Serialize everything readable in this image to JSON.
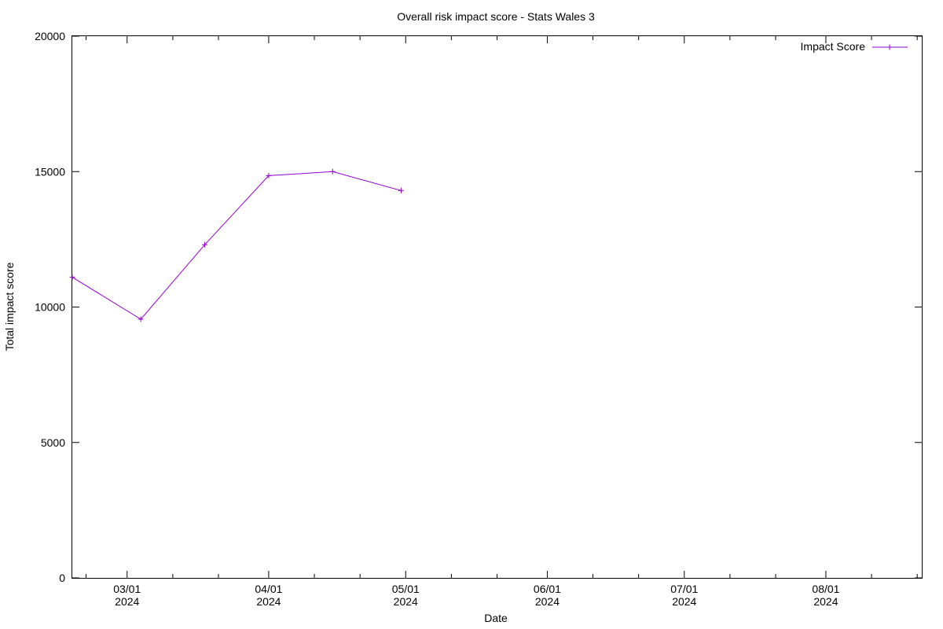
{
  "chart_data": {
    "type": "line",
    "title": "Overall risk impact score - Stats Wales 3",
    "xlabel": "Date",
    "ylabel": "Total impact score",
    "x_scale": "time",
    "xlim": [
      "2024-02-18",
      "2024-08-22"
    ],
    "ylim": [
      0,
      20000
    ],
    "y_ticks": [
      0,
      5000,
      10000,
      15000,
      20000
    ],
    "x_ticks": [
      {
        "date": "2024-03-01",
        "label_top": "03/01",
        "label_bottom": "2024"
      },
      {
        "date": "2024-04-01",
        "label_top": "04/01",
        "label_bottom": "2024"
      },
      {
        "date": "2024-05-01",
        "label_top": "05/01",
        "label_bottom": "2024"
      },
      {
        "date": "2024-06-01",
        "label_top": "06/01",
        "label_bottom": "2024"
      },
      {
        "date": "2024-07-01",
        "label_top": "07/01",
        "label_bottom": "2024"
      },
      {
        "date": "2024-08-01",
        "label_top": "08/01",
        "label_bottom": "2024"
      }
    ],
    "x_minor_ticks": [
      "2024-02-21",
      "2024-03-11",
      "2024-03-21",
      "2024-04-11",
      "2024-04-21",
      "2024-05-11",
      "2024-05-21",
      "2024-06-11",
      "2024-06-21",
      "2024-07-11",
      "2024-07-21",
      "2024-08-11",
      "2024-08-21"
    ],
    "grid": false,
    "legend_position": "top-right",
    "series": [
      {
        "name": "Impact Score",
        "color": "#9400d3",
        "marker": "plus",
        "points": [
          {
            "x": "2024-02-18",
            "y": 11100
          },
          {
            "x": "2024-03-04",
            "y": 9550
          },
          {
            "x": "2024-03-18",
            "y": 12300
          },
          {
            "x": "2024-04-01",
            "y": 14850
          },
          {
            "x": "2024-04-15",
            "y": 15000
          },
          {
            "x": "2024-04-30",
            "y": 14300
          }
        ]
      }
    ]
  }
}
